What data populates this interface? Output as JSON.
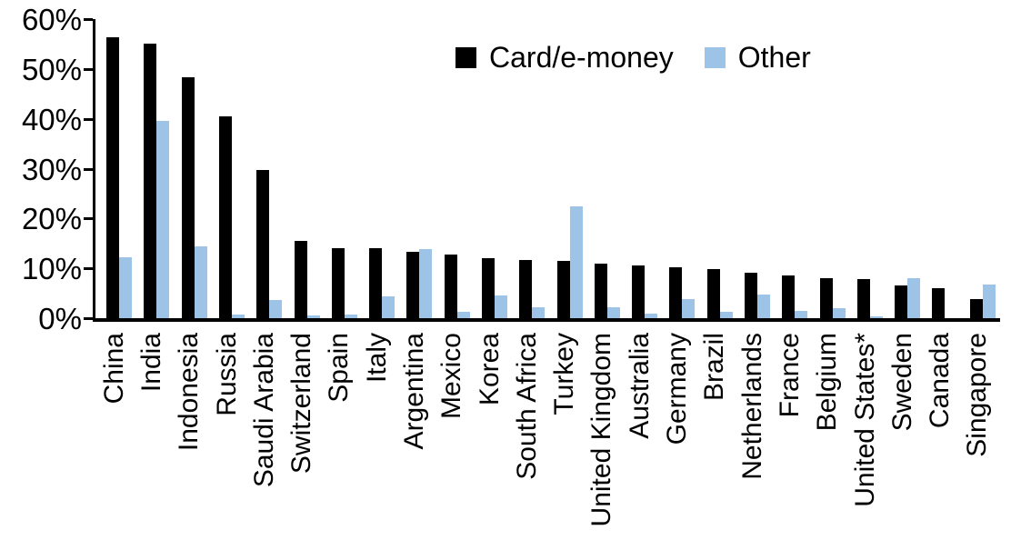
{
  "chart_data": {
    "type": "bar",
    "title": "",
    "xlabel": "",
    "ylabel": "",
    "ylim": [
      0,
      60
    ],
    "ytick_step": 10,
    "ytick_labels": [
      "0%",
      "10%",
      "20%",
      "30%",
      "40%",
      "50%",
      "60%"
    ],
    "grid": false,
    "legend_position": "top-center",
    "categories": [
      "China",
      "India",
      "Indonesia",
      "Russia",
      "Saudi Arabia",
      "Switzerland",
      "Spain",
      "Italy",
      "Argentina",
      "Mexico",
      "Korea",
      "South Africa",
      "Turkey",
      "United Kingdom",
      "Australia",
      "Germany",
      "Brazil",
      "Netherlands",
      "France",
      "Belgium",
      "United States*",
      "Sweden",
      "Canada",
      "Singapore"
    ],
    "series": [
      {
        "name": "Card/e-money",
        "color": "#000000",
        "values": [
          56.3,
          55.0,
          48.4,
          40.5,
          29.8,
          15.5,
          14.1,
          14.0,
          13.4,
          12.7,
          12.1,
          11.6,
          11.5,
          10.9,
          10.6,
          10.3,
          9.8,
          9.1,
          8.6,
          8.1,
          7.9,
          6.6,
          6.0,
          3.9
        ]
      },
      {
        "name": "Other",
        "color": "#9DC3E6",
        "values": [
          12.2,
          39.6,
          14.4,
          0.8,
          3.7,
          0.6,
          0.8,
          4.4,
          13.8,
          1.2,
          4.5,
          2.2,
          22.4,
          2.2,
          1.0,
          3.8,
          1.2,
          4.7,
          1.5,
          2.0,
          0.3,
          8.1,
          0.0,
          6.7
        ]
      }
    ]
  },
  "legend": {
    "items": [
      {
        "label": "Card/e-money",
        "color": "#000000"
      },
      {
        "label": "Other",
        "color": "#9DC3E6"
      }
    ]
  }
}
